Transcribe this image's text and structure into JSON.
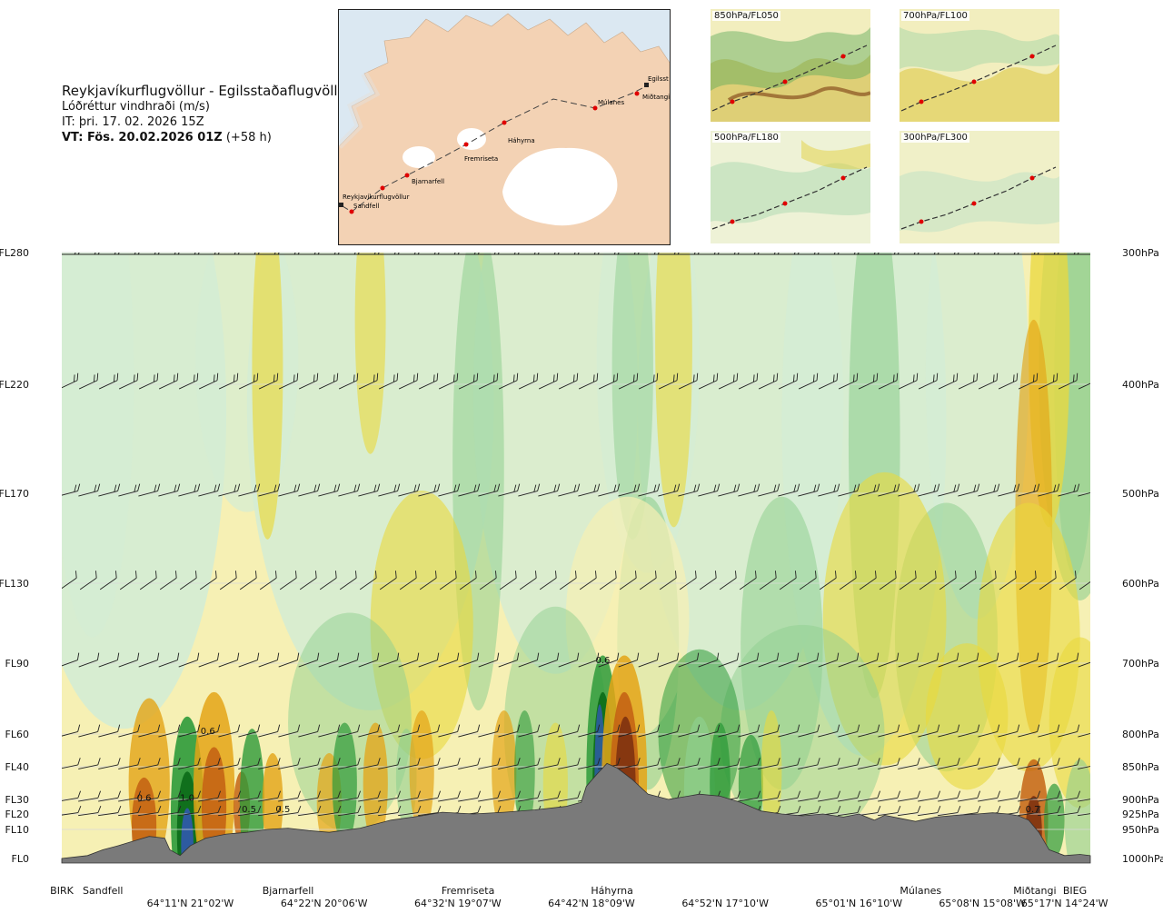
{
  "header": {
    "title": "Reykjavíkurflugvöllur - Egilsstaðaflugvöllur",
    "subtitle": "Lóðréttur vindhraði (m/s)",
    "it": "IT: þri. 17. 02. 2026 15Z",
    "vt_label": "VT: Fös. 20.02.2026 01Z",
    "vt_lead": " (+58 h)"
  },
  "map": {
    "places": [
      "Reykjavíkurflugvöllur",
      "Sandfell",
      "Bjarnarfell",
      "Fremriseta",
      "Háhyrna",
      "Múlanes",
      "Miðtangi",
      "Egilsst"
    ]
  },
  "mini_maps": [
    {
      "label": "850hPa/FL050"
    },
    {
      "label": "700hPa/FL100"
    },
    {
      "label": "500hPa/FL180"
    },
    {
      "label": "300hPa/FL300"
    }
  ],
  "colors": {
    "strong_up": "#2f5aa8",
    "up3": "#0e6e1a",
    "up2": "#2e9a3a",
    "up1": "#8fcf8f",
    "up0": "#d4ecd4",
    "down0": "#f6f0b4",
    "down1": "#ead83c",
    "down2": "#e4a416",
    "down3": "#c46414",
    "down4": "#7e3210",
    "terrain": "#7a7a7a"
  },
  "chart_data": {
    "type": "heatmap",
    "levels_left": [
      {
        "label": "FL280",
        "hpa": 300
      },
      {
        "label": "FL220",
        "hpa": 400
      },
      {
        "label": "FL170",
        "hpa": 500
      },
      {
        "label": "FL130",
        "hpa": 600
      },
      {
        "label": "FL90",
        "hpa": 700
      },
      {
        "label": "FL60",
        "hpa": 800
      },
      {
        "label": "FL40",
        "hpa": 850
      },
      {
        "label": "FL30",
        "hpa": 900
      },
      {
        "label": "FL20",
        "hpa": 925
      },
      {
        "label": "FL10",
        "hpa": 950
      },
      {
        "label": "FL0",
        "hpa": 1000
      }
    ],
    "levels_right": [
      "300hPa",
      "400hPa",
      "500hPa",
      "600hPa",
      "700hPa",
      "800hPa",
      "850hPa",
      "900hPa",
      "925hPa",
      "950hPa",
      "1000hPa"
    ],
    "x_stations": [
      {
        "name": "BIRK",
        "pos": 0.0
      },
      {
        "name": "Sandfell",
        "pos": 0.04
      },
      {
        "name": "Bjarnarfell",
        "pos": 0.22
      },
      {
        "name": "Fremriseta",
        "pos": 0.395
      },
      {
        "name": "Háhyrna",
        "pos": 0.535
      },
      {
        "name": "Múlanes",
        "pos": 0.835
      },
      {
        "name": "Miðtangi",
        "pos": 0.946
      },
      {
        "name": "BIEG",
        "pos": 0.985
      }
    ],
    "x_coords": [
      {
        "label": "64°11'N 21°02'W",
        "pos": 0.125
      },
      {
        "label": "64°22'N 20°06'W",
        "pos": 0.255
      },
      {
        "label": "64°32'N 19°07'W",
        "pos": 0.385
      },
      {
        "label": "64°42'N 18°09'W",
        "pos": 0.515
      },
      {
        "label": "64°52'N 17°10'W",
        "pos": 0.645
      },
      {
        "label": "65°01'N 16°10'W",
        "pos": 0.775
      },
      {
        "label": "65°08'N 15°08'W",
        "pos": 0.895
      },
      {
        "label": "65°17'N 14°24'W",
        "pos": 0.975
      }
    ],
    "value_labels": [
      {
        "text": "0.6",
        "x": 0.08,
        "hpa": 902
      },
      {
        "text": "1.0",
        "x": 0.122,
        "hpa": 902
      },
      {
        "text": "0.6",
        "x": 0.142,
        "hpa": 800
      },
      {
        "text": "0.5",
        "x": 0.182,
        "hpa": 922
      },
      {
        "text": "0.5",
        "x": 0.215,
        "hpa": 922
      },
      {
        "text": "0.6",
        "x": 0.526,
        "hpa": 700
      },
      {
        "text": "0.7",
        "x": 0.944,
        "hpa": 922
      }
    ],
    "terrain_hpa": [
      [
        0.0,
        1000
      ],
      [
        0.025,
        995
      ],
      [
        0.04,
        985
      ],
      [
        0.055,
        978
      ],
      [
        0.07,
        970
      ],
      [
        0.085,
        962
      ],
      [
        0.1,
        965
      ],
      [
        0.105,
        985
      ],
      [
        0.115,
        995
      ],
      [
        0.125,
        978
      ],
      [
        0.14,
        965
      ],
      [
        0.16,
        958
      ],
      [
        0.18,
        955
      ],
      [
        0.2,
        950
      ],
      [
        0.22,
        948
      ],
      [
        0.24,
        952
      ],
      [
        0.26,
        955
      ],
      [
        0.29,
        948
      ],
      [
        0.32,
        935
      ],
      [
        0.35,
        928
      ],
      [
        0.37,
        922
      ],
      [
        0.4,
        925
      ],
      [
        0.43,
        922
      ],
      [
        0.46,
        918
      ],
      [
        0.49,
        912
      ],
      [
        0.505,
        905
      ],
      [
        0.51,
        880
      ],
      [
        0.52,
        862
      ],
      [
        0.53,
        845
      ],
      [
        0.54,
        852
      ],
      [
        0.555,
        870
      ],
      [
        0.57,
        892
      ],
      [
        0.59,
        900
      ],
      [
        0.62,
        892
      ],
      [
        0.64,
        895
      ],
      [
        0.66,
        905
      ],
      [
        0.68,
        920
      ],
      [
        0.7,
        925
      ],
      [
        0.72,
        928
      ],
      [
        0.74,
        925
      ],
      [
        0.76,
        930
      ],
      [
        0.775,
        925
      ],
      [
        0.79,
        935
      ],
      [
        0.8,
        927
      ],
      [
        0.815,
        932
      ],
      [
        0.83,
        937
      ],
      [
        0.85,
        930
      ],
      [
        0.87,
        927
      ],
      [
        0.89,
        925
      ],
      [
        0.905,
        923
      ],
      [
        0.92,
        925
      ],
      [
        0.93,
        928
      ],
      [
        0.94,
        935
      ],
      [
        0.95,
        955
      ],
      [
        0.96,
        985
      ],
      [
        0.975,
        995
      ],
      [
        0.99,
        993
      ],
      [
        1.0,
        995
      ]
    ]
  }
}
